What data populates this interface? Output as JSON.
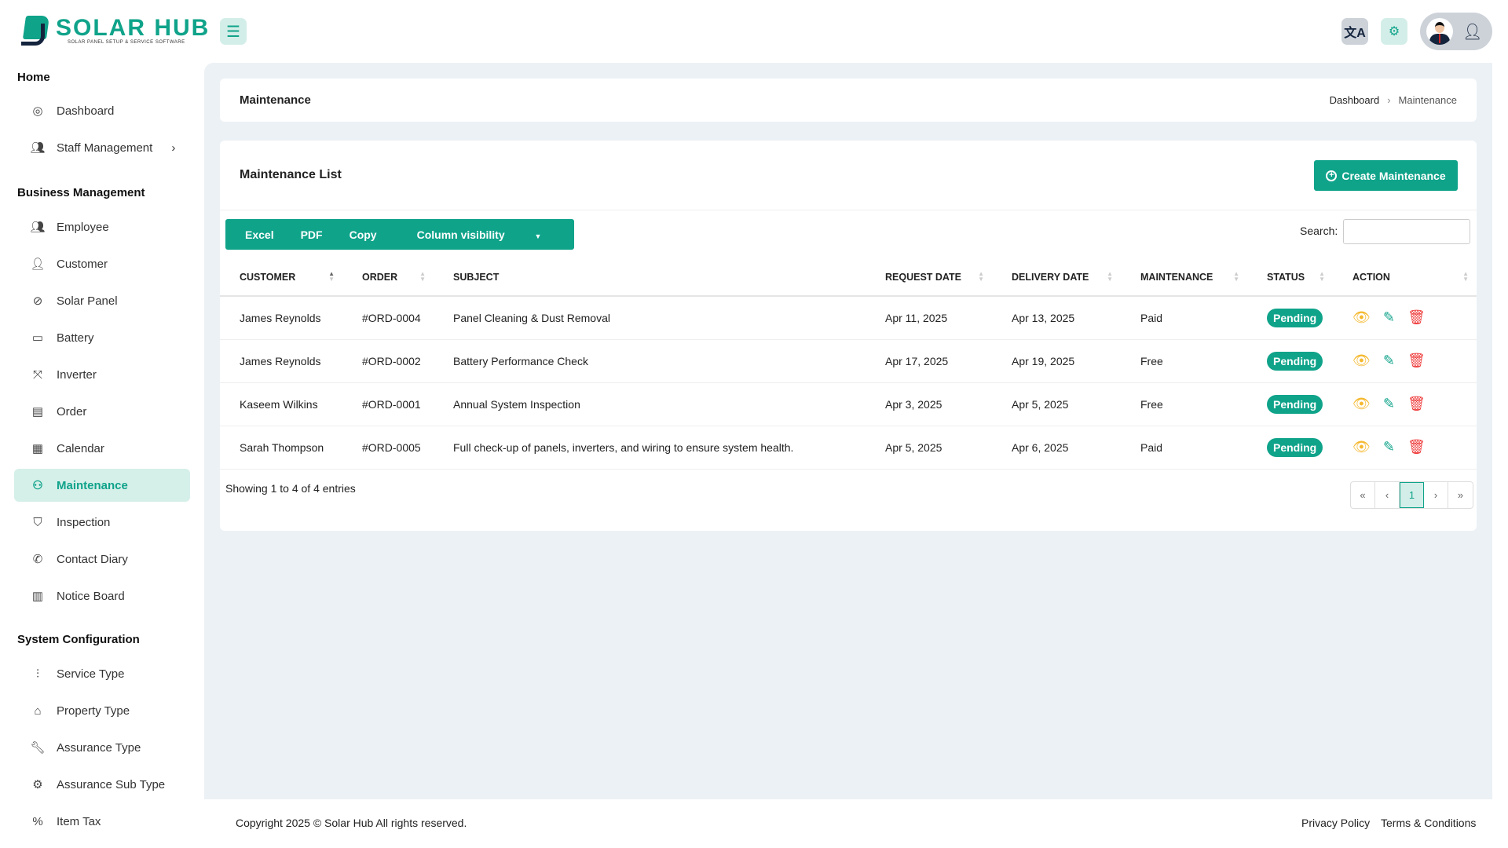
{
  "brand": {
    "name": "SOLAR HUB",
    "tagline": "SOLAR PANEL SETUP & SERVICE SOFTWARE",
    "accent": "#0fa38a"
  },
  "topbar": {
    "menu_icon": "hamburger-icon",
    "translate_icon": "translate-icon",
    "settings_icon": "gear-icon",
    "user_icon": "user-check-icon"
  },
  "sidebar": {
    "sections": [
      {
        "title": "Home",
        "items": [
          {
            "label": "Dashboard",
            "icon": "dashboard-icon"
          },
          {
            "label": "Staff Management",
            "icon": "users-icon"
          }
        ]
      },
      {
        "title": "Business Management",
        "items": [
          {
            "label": "Employee"
          },
          {
            "label": "Customer"
          },
          {
            "label": "Solar Panel"
          },
          {
            "label": "Battery"
          },
          {
            "label": "Inverter"
          },
          {
            "label": "Order"
          },
          {
            "label": "Calendar"
          },
          {
            "label": "Maintenance",
            "active": true
          },
          {
            "label": "Inspection"
          },
          {
            "label": "Contact Diary"
          },
          {
            "label": "Notice Board"
          }
        ]
      },
      {
        "title": "System Configuration",
        "items": [
          {
            "label": "Service Type"
          },
          {
            "label": "Property Type"
          },
          {
            "label": "Assurance Type"
          },
          {
            "label": "Assurance Sub Type"
          },
          {
            "label": "Item Tax"
          }
        ]
      }
    ]
  },
  "breadcrumb": {
    "title": "Maintenance",
    "trail": [
      "Dashboard",
      "Maintenance"
    ]
  },
  "list": {
    "title": "Maintenance List",
    "create_label": "Create Maintenance",
    "buttons": [
      "Excel",
      "PDF",
      "Copy",
      "Column visibility"
    ],
    "search_label": "Search:",
    "search_value": "",
    "columns": [
      "CUSTOMER",
      "ORDER",
      "SUBJECT",
      "REQUEST DATE",
      "DELIVERY DATE",
      "MAINTENANCE",
      "STATUS",
      "ACTION"
    ],
    "rows": [
      {
        "customer": "James Reynolds",
        "order": "#ORD-0004",
        "subject": "Panel Cleaning & Dust Removal",
        "request": "Apr 11, 2025",
        "delivery": "Apr 13, 2025",
        "maintenance": "Paid",
        "status": "Pending"
      },
      {
        "customer": "James Reynolds",
        "order": "#ORD-0002",
        "subject": "Battery Performance Check",
        "request": "Apr 17, 2025",
        "delivery": "Apr 19, 2025",
        "maintenance": "Free",
        "status": "Pending"
      },
      {
        "customer": "Kaseem Wilkins",
        "order": "#ORD-0001",
        "subject": "Annual System Inspection",
        "request": "Apr 3, 2025",
        "delivery": "Apr 5, 2025",
        "maintenance": "Free",
        "status": "Pending"
      },
      {
        "customer": "Sarah Thompson",
        "order": "#ORD-0005",
        "subject": "Full check-up of panels, inverters, and wiring to ensure system health.",
        "request": "Apr 5, 2025",
        "delivery": "Apr 6, 2025",
        "maintenance": "Paid",
        "status": "Pending"
      }
    ],
    "showing": "Showing 1 to 4 of 4 entries",
    "pager": [
      "«",
      "‹",
      "1",
      "›",
      "»"
    ]
  },
  "footer": {
    "copyright": "Copyright 2025 © Solar Hub All rights reserved.",
    "links": [
      "Privacy Policy",
      "Terms & Conditions"
    ]
  }
}
